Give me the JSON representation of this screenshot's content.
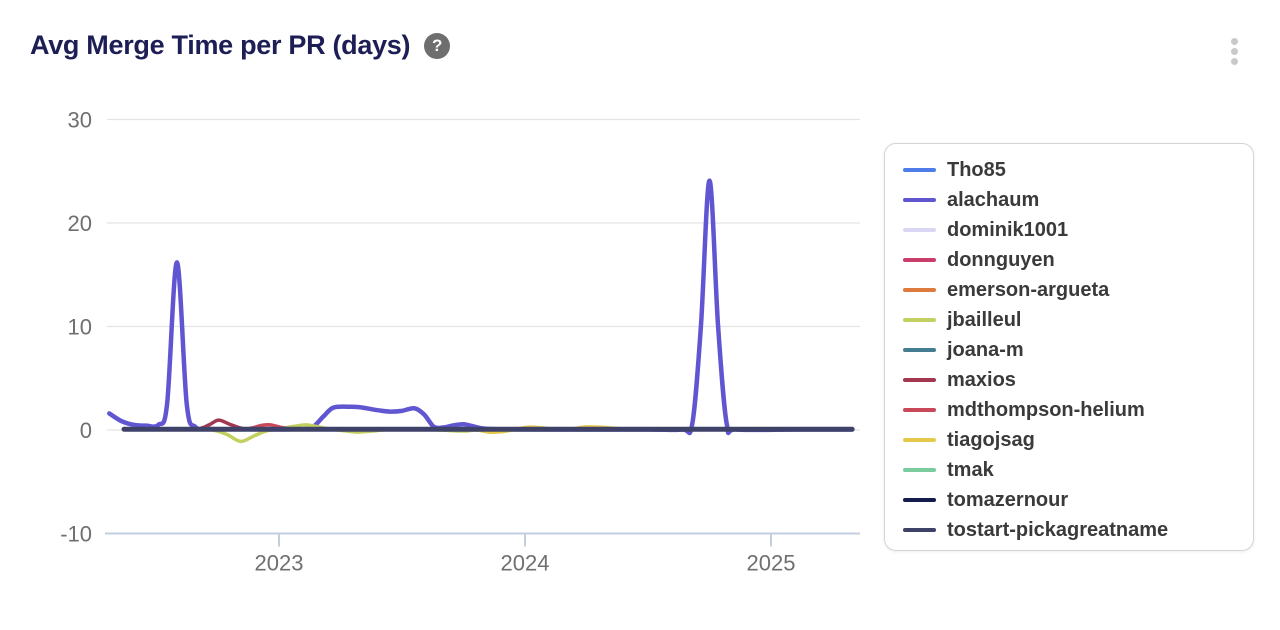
{
  "header": {
    "title": "Avg Merge Time per PR (days)",
    "help_icon_glyph": "?"
  },
  "colors": {
    "title_text": "#1c1e55",
    "gridline": "#e4e4e4",
    "axis_line": "#c3cfe1",
    "tick_label": "#6f6f6f",
    "legend_border": "#d4d4d4",
    "legend_text": "#3a3a3a",
    "help_icon_bg": "#6e6e6e",
    "kebab_dots": "#c9c9c9"
  },
  "chart_data": {
    "type": "line",
    "title": "Avg Merge Time per PR (days)",
    "x_unit": "decimal_year",
    "xlim": [
      2022.29,
      2025.36
    ],
    "ylim": [
      -10,
      30
    ],
    "grid": "horizontal",
    "legend_position": "right",
    "y_gridlines": [
      30,
      20,
      10,
      0
    ],
    "axis_baseline_value": -10,
    "y_ticks": [
      {
        "value": 30,
        "label": "30"
      },
      {
        "value": 20,
        "label": "20"
      },
      {
        "value": 10,
        "label": "10"
      },
      {
        "value": 0,
        "label": "0"
      },
      {
        "value": -10,
        "label": "-10"
      }
    ],
    "x_ticks": [
      {
        "value": 2023,
        "label": "2023"
      },
      {
        "value": 2024,
        "label": "2024"
      },
      {
        "value": 2025,
        "label": "2025"
      }
    ],
    "series": [
      {
        "name": "Tho85",
        "color": "#4e7ce8",
        "width": 3.5,
        "points": [
          [
            2022.37,
            0.07
          ],
          [
            2023.2,
            0.07
          ],
          [
            2024.2,
            0.07
          ],
          [
            2025.33,
            0.07
          ]
        ]
      },
      {
        "name": "alachaum",
        "color": "#6156d2",
        "width": 4.5,
        "points": [
          [
            2022.31,
            1.6
          ],
          [
            2022.36,
            0.85
          ],
          [
            2022.41,
            0.5
          ],
          [
            2022.46,
            0.42
          ],
          [
            2022.51,
            0.5
          ],
          [
            2022.545,
            2.5
          ],
          [
            2022.585,
            16.2
          ],
          [
            2022.625,
            2.5
          ],
          [
            2022.66,
            0.3
          ],
          [
            2022.72,
            0.1
          ],
          [
            2022.9,
            0.07
          ],
          [
            2023.05,
            0.07
          ],
          [
            2023.13,
            0.2
          ],
          [
            2023.18,
            1.3
          ],
          [
            2023.22,
            2.15
          ],
          [
            2023.28,
            2.25
          ],
          [
            2023.33,
            2.2
          ],
          [
            2023.39,
            1.95
          ],
          [
            2023.45,
            1.78
          ],
          [
            2023.5,
            1.85
          ],
          [
            2023.55,
            2.1
          ],
          [
            2023.59,
            1.5
          ],
          [
            2023.63,
            0.3
          ],
          [
            2023.67,
            0.25
          ],
          [
            2023.71,
            0.45
          ],
          [
            2023.75,
            0.55
          ],
          [
            2023.79,
            0.35
          ],
          [
            2023.84,
            0.12
          ],
          [
            2023.95,
            0.06
          ],
          [
            2024.2,
            0.05
          ],
          [
            2024.5,
            0.05
          ],
          [
            2024.64,
            0.05
          ],
          [
            2024.68,
            0.6
          ],
          [
            2024.715,
            10
          ],
          [
            2024.75,
            24.1
          ],
          [
            2024.785,
            10
          ],
          [
            2024.82,
            0.6
          ],
          [
            2024.86,
            0.05
          ],
          [
            2025.1,
            0.05
          ],
          [
            2025.33,
            0.05
          ]
        ]
      },
      {
        "name": "dominik1001",
        "color": "#d9d7f3",
        "width": 3.5,
        "points": [
          [
            2022.4,
            0.04
          ],
          [
            2023.5,
            0.04
          ],
          [
            2024.5,
            0.04
          ],
          [
            2025.3,
            0.04
          ]
        ]
      },
      {
        "name": "donnguyen",
        "color": "#c73e6b",
        "width": 3.5,
        "points": [
          [
            2022.4,
            0.06
          ],
          [
            2023.5,
            0.06
          ],
          [
            2024.5,
            0.06
          ],
          [
            2025.3,
            0.06
          ]
        ]
      },
      {
        "name": "emerson-argueta",
        "color": "#dd7a3e",
        "width": 3.5,
        "points": [
          [
            2022.45,
            0.05
          ],
          [
            2023.5,
            0.05
          ],
          [
            2024.5,
            0.05
          ],
          [
            2025.3,
            0.05
          ]
        ]
      },
      {
        "name": "jbailleul",
        "color": "#c3cf5e",
        "width": 3.5,
        "points": [
          [
            2022.45,
            0.05
          ],
          [
            2022.68,
            0.05
          ],
          [
            2022.74,
            -0.05
          ],
          [
            2022.79,
            -0.45
          ],
          [
            2022.845,
            -1.1
          ],
          [
            2022.9,
            -0.55
          ],
          [
            2022.95,
            -0.08
          ],
          [
            2023.0,
            0.1
          ],
          [
            2023.06,
            0.35
          ],
          [
            2023.11,
            0.5
          ],
          [
            2023.16,
            0.3
          ],
          [
            2023.21,
            0.08
          ],
          [
            2023.27,
            -0.08
          ],
          [
            2023.32,
            -0.2
          ],
          [
            2023.38,
            -0.1
          ],
          [
            2023.45,
            0.05
          ],
          [
            2023.6,
            0.05
          ],
          [
            2023.75,
            -0.1
          ],
          [
            2023.85,
            0.05
          ],
          [
            2024.3,
            0.05
          ],
          [
            2025.3,
            0.05
          ]
        ]
      },
      {
        "name": "joana-m",
        "color": "#467c8f",
        "width": 3.5,
        "points": [
          [
            2022.5,
            0.05
          ],
          [
            2023.5,
            0.05
          ],
          [
            2024.5,
            0.05
          ],
          [
            2025.3,
            0.05
          ]
        ]
      },
      {
        "name": "maxios",
        "color": "#a23850",
        "width": 3.5,
        "points": [
          [
            2022.45,
            0.05
          ],
          [
            2022.62,
            0.05
          ],
          [
            2022.68,
            0.15
          ],
          [
            2022.72,
            0.55
          ],
          [
            2022.755,
            0.95
          ],
          [
            2022.8,
            0.55
          ],
          [
            2022.85,
            0.15
          ],
          [
            2022.9,
            0.08
          ],
          [
            2023.1,
            0.05
          ],
          [
            2024.2,
            0.05
          ],
          [
            2025.3,
            0.05
          ]
        ]
      },
      {
        "name": "mdthompson-helium",
        "color": "#c8485a",
        "width": 3.5,
        "points": [
          [
            2022.5,
            0.05
          ],
          [
            2022.82,
            0.05
          ],
          [
            2022.88,
            0.15
          ],
          [
            2022.93,
            0.45
          ],
          [
            2022.965,
            0.5
          ],
          [
            2023.01,
            0.25
          ],
          [
            2023.06,
            0.08
          ],
          [
            2023.2,
            0.05
          ],
          [
            2024.2,
            0.05
          ],
          [
            2025.3,
            0.05
          ]
        ]
      },
      {
        "name": "tiagojsag",
        "color": "#e6c94c",
        "width": 3.5,
        "points": [
          [
            2022.5,
            0.05
          ],
          [
            2023.7,
            0.05
          ],
          [
            2023.8,
            0.0
          ],
          [
            2023.86,
            -0.22
          ],
          [
            2023.92,
            -0.12
          ],
          [
            2023.97,
            0.12
          ],
          [
            2024.02,
            0.28
          ],
          [
            2024.08,
            0.18
          ],
          [
            2024.13,
            0.06
          ],
          [
            2024.19,
            0.1
          ],
          [
            2024.25,
            0.3
          ],
          [
            2024.32,
            0.25
          ],
          [
            2024.4,
            0.1
          ],
          [
            2024.5,
            0.05
          ],
          [
            2025.3,
            0.05
          ]
        ]
      },
      {
        "name": "tmak",
        "color": "#7bcb9e",
        "width": 3.5,
        "points": [
          [
            2022.5,
            0.05
          ],
          [
            2023.5,
            0.05
          ],
          [
            2024.5,
            0.05
          ],
          [
            2025.3,
            0.05
          ]
        ]
      },
      {
        "name": "tomazernour",
        "color": "#141b4d",
        "width": 4,
        "points": [
          [
            2022.4,
            0.06
          ],
          [
            2023.5,
            0.06
          ],
          [
            2024.5,
            0.06
          ],
          [
            2025.32,
            0.06
          ]
        ]
      },
      {
        "name": "tostart-pickagreatname",
        "color": "#3e4168",
        "width": 5,
        "points": [
          [
            2022.37,
            0.07
          ],
          [
            2023.5,
            0.07
          ],
          [
            2024.5,
            0.07
          ],
          [
            2025.33,
            0.07
          ]
        ]
      }
    ]
  }
}
